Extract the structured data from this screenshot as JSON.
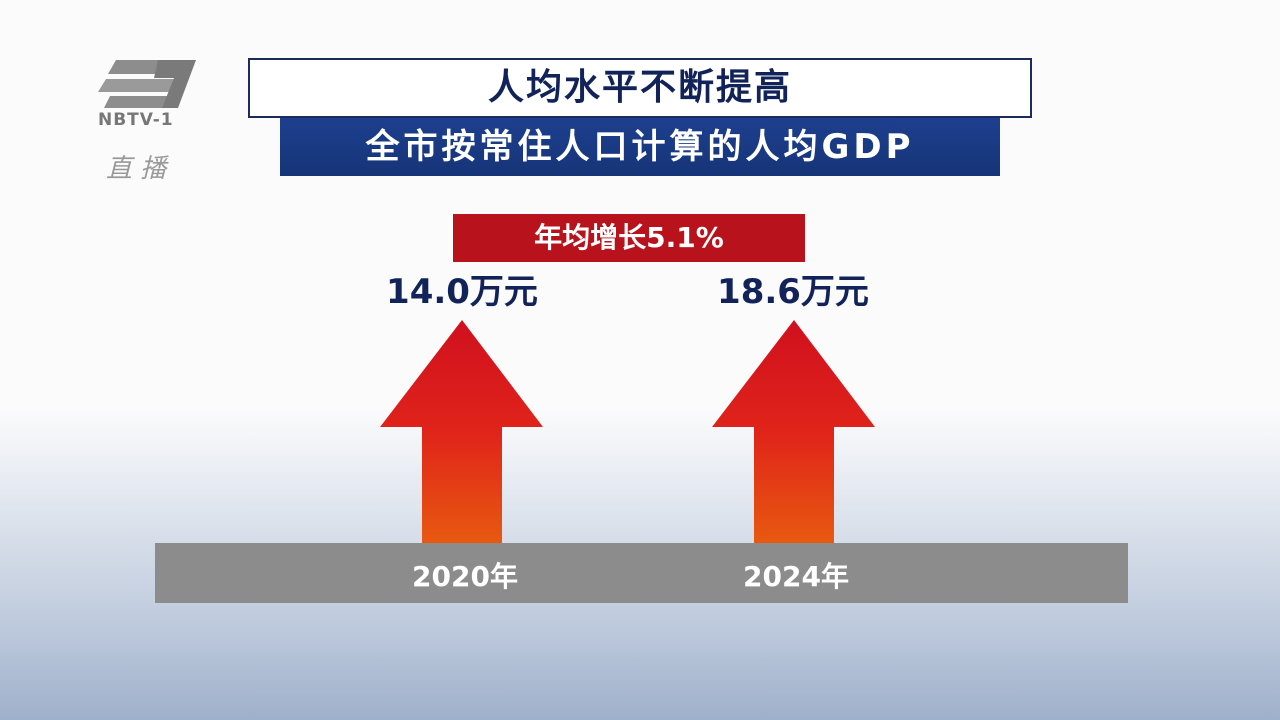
{
  "logo": {
    "name": "NBTV-1",
    "live": "直 播"
  },
  "header": {
    "title": "人均水平不断提高",
    "subtitle": "全市按常住人口计算的人均GDP"
  },
  "growth": "年均增长5.1%",
  "items": [
    {
      "value": "14.0万元",
      "year": "2020年"
    },
    {
      "value": "18.6万元",
      "year": "2024年"
    }
  ]
}
